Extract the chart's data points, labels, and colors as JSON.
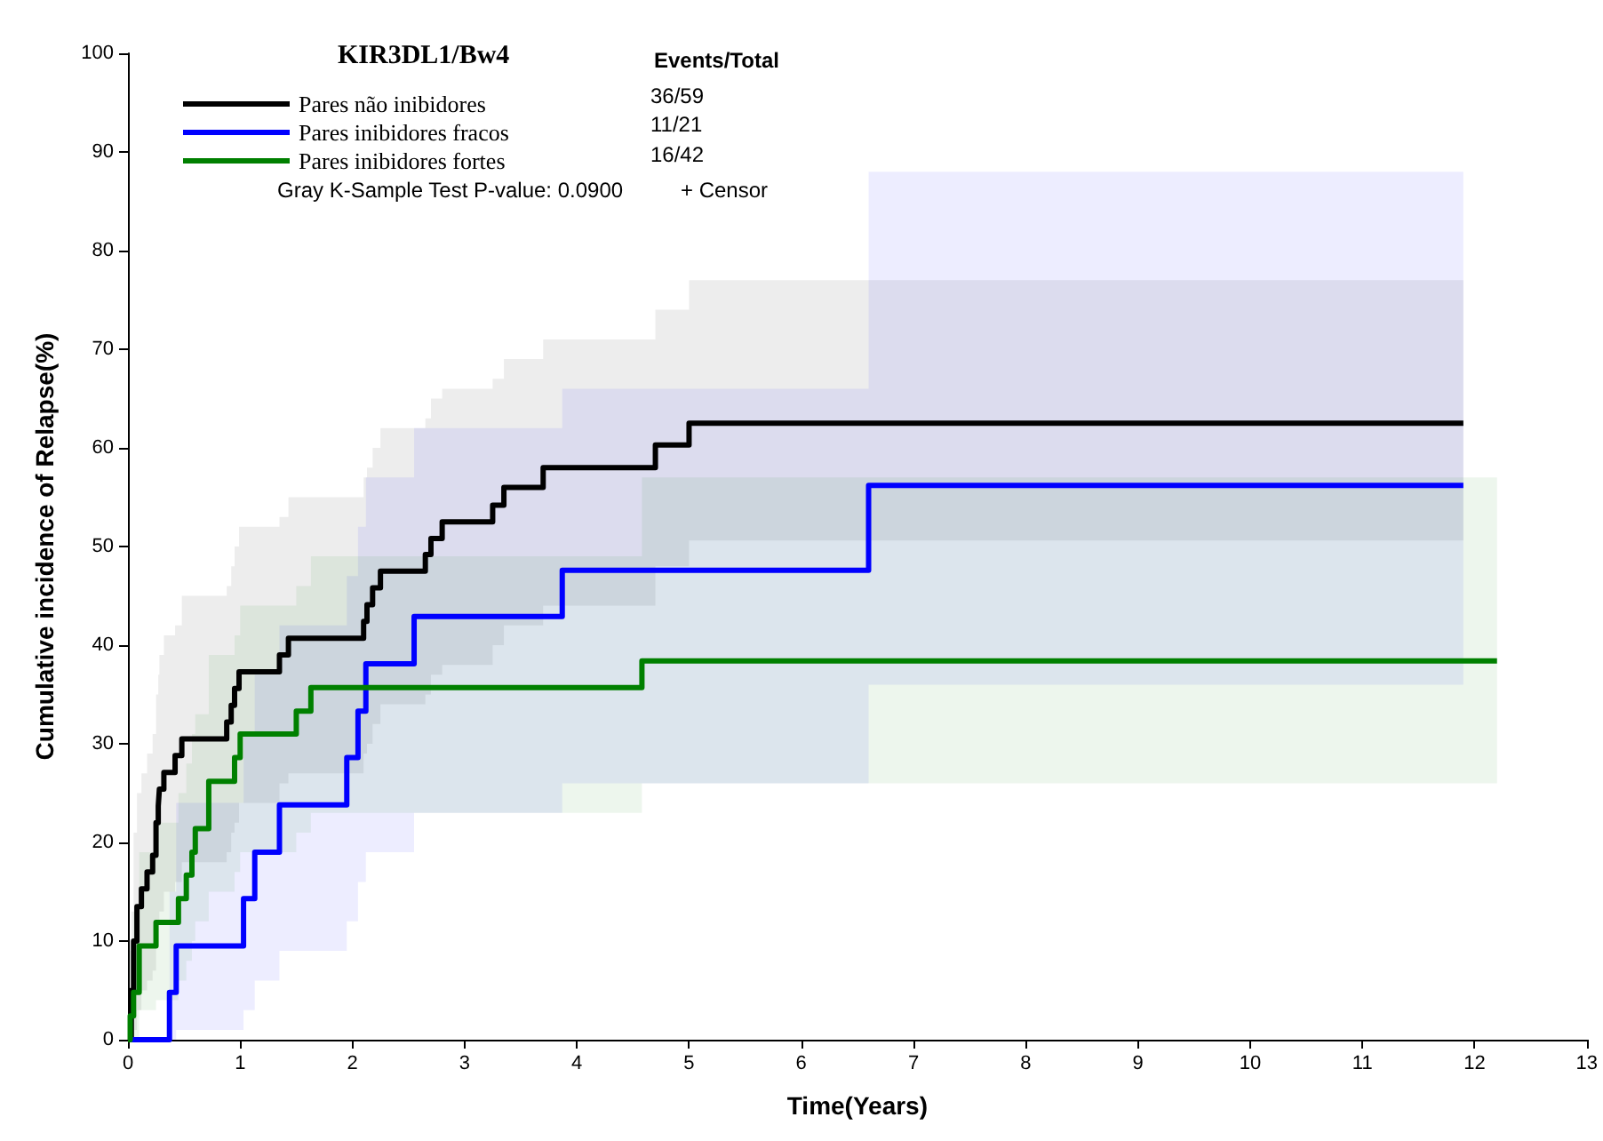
{
  "chart_data": {
    "type": "step",
    "xlabel": "Time(Years)",
    "ylabel": "Cumulative incidence of Relapse(%)",
    "legend_title": "KIR3DL1/Bw4",
    "xlim": [
      0,
      13
    ],
    "xticks": [
      0,
      1,
      2,
      3,
      4,
      5,
      6,
      7,
      8,
      9,
      10,
      11,
      12,
      13
    ],
    "ylim": [
      0,
      100
    ],
    "yticks": [
      0,
      10,
      20,
      30,
      40,
      50,
      60,
      70,
      80,
      90,
      100
    ],
    "grid": false,
    "legend": "top left",
    "marker": "none",
    "line_style": "solid",
    "annotations": [
      "Events/Total",
      "36/59",
      "11/21",
      "16/42",
      "Gray K-Sample Test P-value: 0.0900",
      "+ Censor"
    ],
    "series": [
      {
        "name": "Pares não inibidores",
        "color": "#000000",
        "x": [
          0,
          0.03,
          0.05,
          0.08,
          0.12,
          0.17,
          0.22,
          0.25,
          0.27,
          0.28,
          0.32,
          0.42,
          0.48,
          0.88,
          0.92,
          0.95,
          0.99,
          1.35,
          1.43,
          2.1,
          2.13,
          2.18,
          2.25,
          2.65,
          2.7,
          2.8,
          3.25,
          3.35,
          3.7,
          4.7,
          5.0,
          11.9
        ],
        "values": [
          0,
          5,
          10,
          13.5,
          15.3,
          17,
          18.7,
          22,
          23.7,
          25.4,
          27.1,
          28.8,
          30.5,
          32.2,
          33.9,
          35.6,
          37.3,
          39,
          40.7,
          42.4,
          44.1,
          45.8,
          47.5,
          49.2,
          50.8,
          52.5,
          54.2,
          56,
          58,
          60.3,
          62.5,
          62.5
        ],
        "lower": [
          0,
          0,
          1,
          3,
          5,
          6,
          7,
          10,
          12,
          13,
          15,
          16,
          18,
          19,
          21,
          22,
          24,
          26,
          27,
          29,
          30,
          32,
          34,
          35,
          37,
          38,
          40,
          42,
          44,
          48,
          50.6,
          50.6
        ],
        "upper": [
          0,
          13,
          21,
          25,
          27,
          29,
          31,
          35,
          37,
          39,
          41,
          42,
          45,
          46,
          48,
          50,
          52,
          53,
          55,
          57,
          58,
          60,
          62,
          63,
          65,
          66,
          67,
          69,
          71,
          74,
          77,
          77
        ]
      },
      {
        "name": "Pares inibidores fracos",
        "color": "#0000ff",
        "x": [
          0,
          0.37,
          0.43,
          1.03,
          1.13,
          1.35,
          1.95,
          2.05,
          2.12,
          2.55,
          3.87,
          6.6,
          11.9
        ],
        "values": [
          0,
          4.8,
          9.5,
          14.3,
          19,
          23.8,
          28.6,
          33.3,
          38.1,
          42.9,
          47.6,
          56.2,
          56.2
        ],
        "lower": [
          0,
          0,
          1,
          3,
          6,
          9,
          12,
          16,
          19,
          23,
          26,
          36,
          36
        ],
        "upper": [
          0,
          15,
          24,
          31,
          37,
          42,
          47,
          52,
          57,
          62,
          66,
          88,
          88
        ]
      },
      {
        "name": "Pares inibidores fortes",
        "color": "#008000",
        "x": [
          0,
          0.02,
          0.05,
          0.1,
          0.25,
          0.45,
          0.52,
          0.57,
          0.6,
          0.72,
          0.95,
          1.0,
          1.5,
          1.63,
          4.58,
          12.2
        ],
        "values": [
          0,
          2.4,
          4.8,
          9.5,
          11.9,
          14.3,
          16.7,
          19,
          21.4,
          26.2,
          28.6,
          31,
          33.3,
          35.7,
          38.4,
          38.4
        ],
        "lower": [
          0,
          0,
          0,
          3,
          4,
          6,
          8,
          10,
          12,
          15,
          17,
          19,
          21,
          23,
          26,
          26
        ],
        "upper": [
          0,
          9,
          13,
          19,
          22,
          25,
          28,
          31,
          33,
          39,
          41,
          44,
          46,
          49,
          57,
          57
        ]
      }
    ]
  }
}
